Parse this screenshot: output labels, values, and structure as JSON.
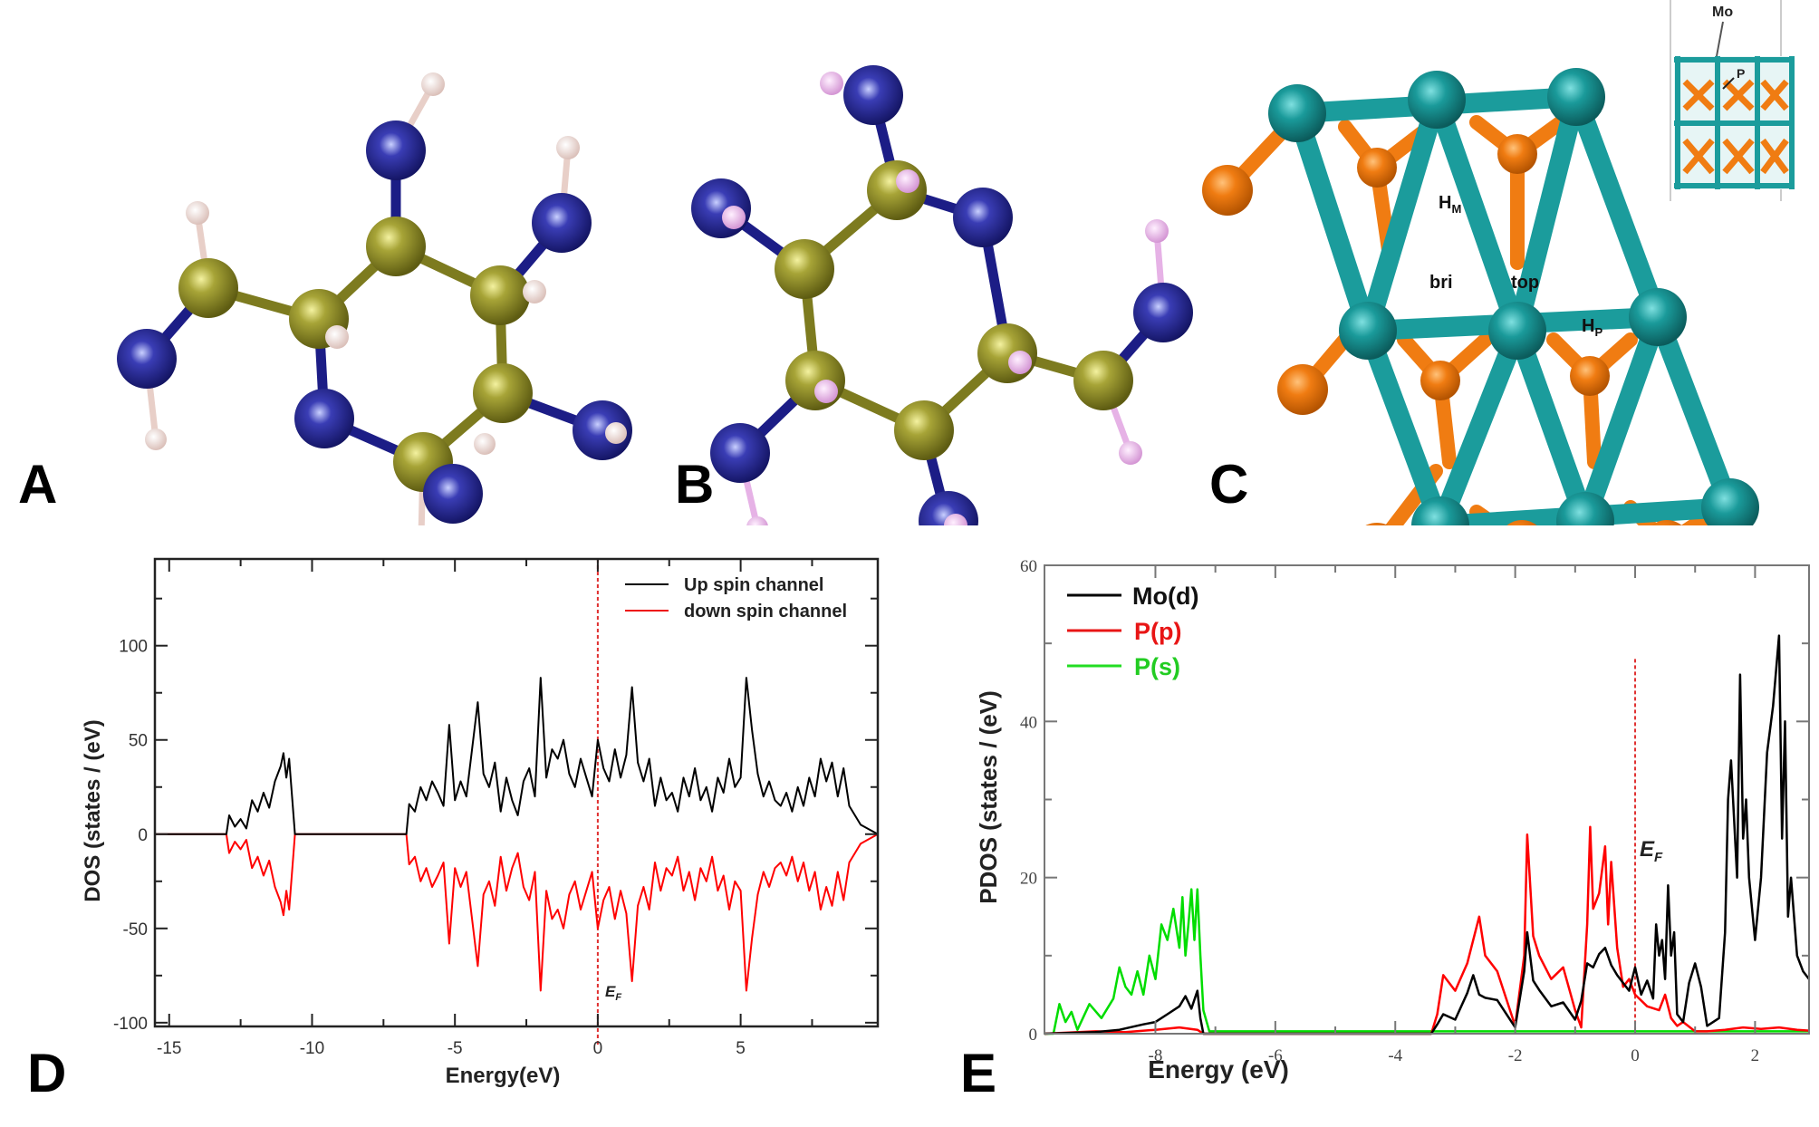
{
  "panels": {
    "A": {
      "letter": "A",
      "description": "Molecule structure (ball-and-stick, C=olive, N=navy, H=pink)"
    },
    "B": {
      "letter": "B",
      "description": "Molecule structure (ball-and-stick, alternate conformer)"
    },
    "C": {
      "letter": "C",
      "site_labels": {
        "hollow_m": "H",
        "hollow_m_sub": "M",
        "bridge": "bri",
        "top": "top",
        "hollow_p": "H",
        "hollow_p_sub": "P"
      },
      "inset": {
        "mo_label": "Mo",
        "p_label": "P"
      }
    },
    "D": {
      "letter": "D",
      "ef_label": "E",
      "ef_sub": "F"
    },
    "E": {
      "letter": "E",
      "ef_label": "E",
      "ef_sub": "F"
    }
  },
  "colors": {
    "carbon": "#8c8a2a",
    "nitrogen": "#1c1d86",
    "hydrogen_a": "#f2dcd6",
    "hydrogen_b": "#e9b6e6",
    "mo": "#1b9c9c",
    "p": "#f07c12",
    "up_spin": "#000000",
    "down_spin": "#ee1111",
    "mo_d": "#000000",
    "p_p": "#e81515",
    "p_s": "#22dd22",
    "fermi": "#e03030"
  },
  "chart_data": [
    {
      "id": "D",
      "type": "line",
      "title": "",
      "xlabel": "Energy(eV)",
      "ylabel": "DOS (states / (eV)",
      "xlim": [
        -15.5,
        9.8
      ],
      "ylim": [
        -102,
        146
      ],
      "xticks": [
        -15,
        -10,
        -5,
        0,
        5
      ],
      "xtick_labels": [
        "-15",
        "-10",
        "-5",
        "0",
        "5"
      ],
      "yticks": [
        -100,
        -50,
        0,
        50,
        100
      ],
      "ytick_labels": [
        "-100",
        "-50",
        "0",
        "50",
        "100"
      ],
      "grid": false,
      "legend_position": "upper right",
      "fermi_level": 0,
      "series": [
        {
          "name": "Up spin channel",
          "color": "#000000",
          "x": [
            -15.5,
            -13.0,
            -12.9,
            -12.7,
            -12.5,
            -12.3,
            -12.1,
            -11.9,
            -11.7,
            -11.5,
            -11.3,
            -11.1,
            -11.0,
            -10.9,
            -10.8,
            -10.7,
            -10.6,
            -6.7,
            -6.6,
            -6.4,
            -6.2,
            -6.0,
            -5.8,
            -5.6,
            -5.4,
            -5.2,
            -5.0,
            -4.8,
            -4.6,
            -4.4,
            -4.2,
            -4.0,
            -3.8,
            -3.6,
            -3.4,
            -3.2,
            -3.0,
            -2.8,
            -2.6,
            -2.4,
            -2.2,
            -2.0,
            -1.8,
            -1.6,
            -1.4,
            -1.2,
            -1.0,
            -0.8,
            -0.6,
            -0.4,
            -0.2,
            0.0,
            0.2,
            0.4,
            0.6,
            0.8,
            1.0,
            1.2,
            1.4,
            1.6,
            1.8,
            2.0,
            2.2,
            2.4,
            2.6,
            2.8,
            3.0,
            3.2,
            3.4,
            3.6,
            3.8,
            4.0,
            4.2,
            4.4,
            4.6,
            4.8,
            5.0,
            5.2,
            5.4,
            5.6,
            5.8,
            6.0,
            6.2,
            6.4,
            6.6,
            6.8,
            7.0,
            7.2,
            7.4,
            7.6,
            7.8,
            8.0,
            8.2,
            8.4,
            8.6,
            8.8,
            9.0,
            9.2,
            9.8
          ],
          "values": [
            0,
            0,
            10,
            4,
            8,
            3,
            18,
            12,
            22,
            14,
            28,
            36,
            43,
            30,
            40,
            20,
            0,
            0,
            16,
            12,
            25,
            18,
            28,
            22,
            15,
            58,
            18,
            28,
            20,
            45,
            70,
            32,
            25,
            38,
            12,
            30,
            18,
            10,
            28,
            35,
            20,
            83,
            30,
            45,
            40,
            50,
            32,
            25,
            40,
            30,
            20,
            50,
            35,
            28,
            45,
            30,
            42,
            78,
            38,
            28,
            40,
            15,
            30,
            18,
            22,
            12,
            30,
            20,
            35,
            18,
            25,
            12,
            30,
            22,
            40,
            25,
            30,
            83,
            55,
            32,
            20,
            28,
            18,
            15,
            22,
            12,
            25,
            15,
            30,
            20,
            40,
            28,
            38,
            20,
            35,
            15,
            10,
            5,
            0
          ]
        },
        {
          "name": "down spin channel",
          "color": "#ff0000",
          "x": [
            -15.5,
            -13.0,
            -12.9,
            -12.7,
            -12.5,
            -12.3,
            -12.1,
            -11.9,
            -11.7,
            -11.5,
            -11.3,
            -11.1,
            -11.0,
            -10.9,
            -10.8,
            -10.7,
            -10.6,
            -6.7,
            -6.6,
            -6.4,
            -6.2,
            -6.0,
            -5.8,
            -5.6,
            -5.4,
            -5.2,
            -5.0,
            -4.8,
            -4.6,
            -4.4,
            -4.2,
            -4.0,
            -3.8,
            -3.6,
            -3.4,
            -3.2,
            -3.0,
            -2.8,
            -2.6,
            -2.4,
            -2.2,
            -2.0,
            -1.8,
            -1.6,
            -1.4,
            -1.2,
            -1.0,
            -0.8,
            -0.6,
            -0.4,
            -0.2,
            0.0,
            0.2,
            0.4,
            0.6,
            0.8,
            1.0,
            1.2,
            1.4,
            1.6,
            1.8,
            2.0,
            2.2,
            2.4,
            2.6,
            2.8,
            3.0,
            3.2,
            3.4,
            3.6,
            3.8,
            4.0,
            4.2,
            4.4,
            4.6,
            4.8,
            5.0,
            5.2,
            5.4,
            5.6,
            5.8,
            6.0,
            6.2,
            6.4,
            6.6,
            6.8,
            7.0,
            7.2,
            7.4,
            7.6,
            7.8,
            8.0,
            8.2,
            8.4,
            8.6,
            8.8,
            9.0,
            9.2,
            9.8
          ],
          "values": [
            0,
            0,
            -10,
            -4,
            -8,
            -3,
            -18,
            -12,
            -22,
            -14,
            -28,
            -36,
            -43,
            -30,
            -40,
            -20,
            0,
            0,
            -16,
            -12,
            -25,
            -18,
            -28,
            -22,
            -15,
            -58,
            -18,
            -28,
            -20,
            -45,
            -70,
            -32,
            -25,
            -38,
            -12,
            -30,
            -18,
            -10,
            -28,
            -35,
            -20,
            -83,
            -30,
            -45,
            -40,
            -50,
            -32,
            -25,
            -40,
            -30,
            -20,
            -50,
            -35,
            -28,
            -45,
            -30,
            -42,
            -78,
            -38,
            -28,
            -40,
            -15,
            -30,
            -18,
            -22,
            -12,
            -30,
            -20,
            -35,
            -18,
            -25,
            -12,
            -30,
            -22,
            -40,
            -25,
            -30,
            -83,
            -55,
            -32,
            -20,
            -28,
            -18,
            -15,
            -22,
            -12,
            -25,
            -15,
            -30,
            -20,
            -40,
            -28,
            -38,
            -20,
            -35,
            -15,
            -10,
            -5,
            0
          ]
        }
      ],
      "annotations": [
        {
          "text": "E_F",
          "x": 0.1,
          "y": -88
        }
      ]
    },
    {
      "id": "E",
      "type": "line",
      "title": "",
      "xlabel": "Energy (eV)",
      "ylabel": "PDOS (states / (eV)",
      "xlim": [
        -9.85,
        2.9
      ],
      "ylim": [
        0,
        60
      ],
      "xticks": [
        -8,
        -6,
        -4,
        -2,
        0,
        2
      ],
      "xtick_labels": [
        "-8",
        "-6",
        "-4",
        "-2",
        "0",
        "2"
      ],
      "yticks": [
        0,
        20,
        40,
        60
      ],
      "ytick_labels": [
        "0",
        "20",
        "40",
        "60"
      ],
      "grid": false,
      "legend_position": "upper left",
      "fermi_level": 0,
      "fermi_line_top": 48,
      "series": [
        {
          "name": "Mo(d)",
          "color": "#000000",
          "x": [
            -9.85,
            -9.0,
            -8.6,
            -8.2,
            -8.0,
            -7.8,
            -7.6,
            -7.5,
            -7.4,
            -7.3,
            -7.25,
            -7.2,
            -3.4,
            -3.3,
            -3.2,
            -3.0,
            -2.8,
            -2.7,
            -2.6,
            -2.5,
            -2.3,
            -2.0,
            -1.85,
            -1.8,
            -1.7,
            -1.6,
            -1.4,
            -1.2,
            -1.0,
            -0.9,
            -0.8,
            -0.7,
            -0.6,
            -0.5,
            -0.4,
            -0.3,
            -0.2,
            -0.1,
            0.0,
            0.1,
            0.2,
            0.3,
            0.35,
            0.4,
            0.45,
            0.5,
            0.55,
            0.6,
            0.65,
            0.7,
            0.8,
            0.9,
            1.0,
            1.1,
            1.2,
            1.4,
            1.5,
            1.55,
            1.6,
            1.7,
            1.75,
            1.8,
            1.85,
            1.9,
            2.0,
            2.1,
            2.2,
            2.3,
            2.4,
            2.45,
            2.5,
            2.55,
            2.6,
            2.7,
            2.8,
            2.9
          ],
          "values": [
            0,
            0.2,
            0.5,
            1.2,
            1.5,
            2.5,
            3.5,
            4.8,
            3.2,
            5.5,
            2.0,
            0,
            0,
            1.2,
            2.5,
            1.8,
            5.2,
            7.5,
            5.0,
            4.6,
            4.3,
            0.8,
            8.0,
            13.0,
            6.8,
            5.6,
            3.5,
            4.0,
            1.8,
            4.2,
            9.0,
            8.5,
            10.2,
            11.0,
            8.8,
            7.5,
            6.5,
            5.5,
            8.5,
            5.0,
            6.8,
            4.5,
            14.0,
            10.0,
            12.0,
            7.0,
            19.0,
            10.0,
            13.0,
            2.5,
            1.5,
            6.5,
            9.0,
            6.0,
            1.0,
            2.0,
            13.0,
            30.0,
            35.0,
            20.0,
            46.0,
            25.0,
            30.0,
            20.0,
            12.0,
            20.0,
            36.0,
            42.0,
            51.0,
            25.0,
            40.0,
            15.0,
            20.0,
            10.0,
            8.0,
            7.0
          ]
        },
        {
          "name": "P(p)",
          "color": "#ff0000",
          "x": [
            -9.85,
            -9.0,
            -8.5,
            -8.0,
            -7.6,
            -7.3,
            -7.2,
            -3.4,
            -3.3,
            -3.2,
            -3.0,
            -2.8,
            -2.7,
            -2.6,
            -2.5,
            -2.3,
            -2.0,
            -1.85,
            -1.8,
            -1.7,
            -1.6,
            -1.4,
            -1.2,
            -1.0,
            -0.9,
            -0.8,
            -0.75,
            -0.7,
            -0.6,
            -0.5,
            -0.45,
            -0.4,
            -0.3,
            -0.2,
            -0.1,
            0.0,
            0.2,
            0.4,
            0.5,
            0.6,
            0.7,
            0.8,
            1.0,
            1.2,
            1.5,
            1.8,
            2.1,
            2.4,
            2.7,
            2.9
          ],
          "values": [
            0,
            0.3,
            0.2,
            0.5,
            0.8,
            0.5,
            0,
            0,
            2.5,
            7.5,
            5.5,
            9.0,
            12.0,
            15.0,
            10.0,
            8.0,
            1.0,
            10.0,
            25.5,
            12.5,
            10.0,
            7.0,
            8.5,
            3.0,
            0.8,
            14.0,
            26.5,
            16.0,
            18.0,
            24.0,
            14.0,
            22.0,
            11.0,
            6.0,
            7.0,
            5.0,
            3.5,
            3.0,
            5.0,
            2.0,
            1.0,
            1.5,
            0.3,
            0.3,
            0.5,
            0.8,
            0.6,
            0.8,
            0.5,
            0.4
          ]
        },
        {
          "name": "P(s)",
          "color": "#00dd00",
          "x": [
            -9.85,
            -9.7,
            -9.6,
            -9.5,
            -9.4,
            -9.3,
            -9.1,
            -8.9,
            -8.7,
            -8.6,
            -8.5,
            -8.4,
            -8.3,
            -8.2,
            -8.1,
            -8.0,
            -7.9,
            -7.8,
            -7.7,
            -7.6,
            -7.55,
            -7.5,
            -7.45,
            -7.4,
            -7.35,
            -7.3,
            -7.25,
            -7.2,
            -7.1,
            2.9
          ],
          "values": [
            0,
            0,
            3.8,
            1.5,
            2.8,
            0.5,
            3.8,
            2.0,
            4.5,
            8.5,
            6.0,
            5.0,
            8.0,
            5.0,
            10.0,
            7.0,
            14.0,
            12.0,
            16.0,
            11.0,
            17.5,
            10.0,
            14.0,
            18.5,
            12.0,
            18.5,
            10.0,
            3.0,
            0.3,
            0.3
          ]
        }
      ],
      "annotations": [
        {
          "text": "E_F",
          "x": 0.05,
          "y": 31
        }
      ]
    }
  ]
}
